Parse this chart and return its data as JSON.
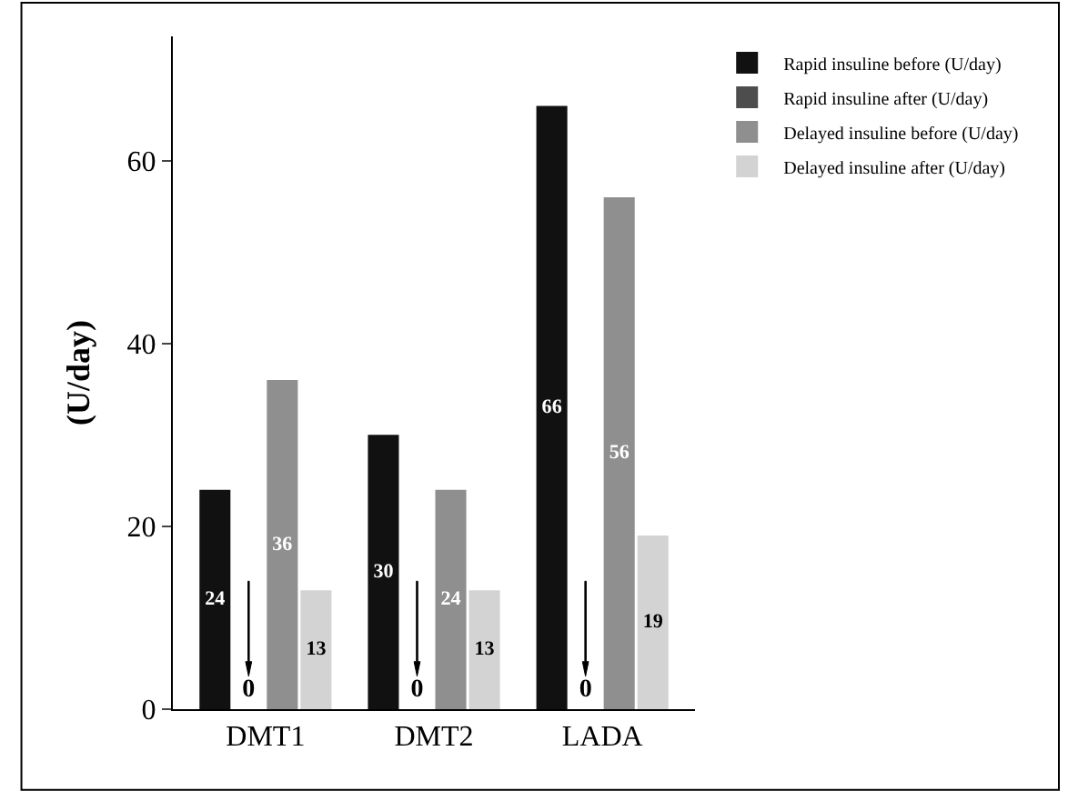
{
  "chart_data": {
    "type": "bar",
    "ylabel": "(U/day)",
    "categories": [
      "DMT1",
      "DMT2",
      "LADA"
    ],
    "series": [
      {
        "name": "Rapid insuline before (U/day)",
        "color": "#111111",
        "values": [
          24,
          30,
          66
        ]
      },
      {
        "name": "Rapid insuline after (U/day)",
        "color": "#4d4d4d",
        "values": [
          0,
          0,
          0
        ]
      },
      {
        "name": "Delayed insuline before (U/day)",
        "color": "#8f8f8f",
        "values": [
          36,
          24,
          56
        ]
      },
      {
        "name": "Delayed insuline after (U/day)",
        "color": "#d3d3d3",
        "values": [
          13,
          13,
          19
        ]
      }
    ],
    "ylim": [
      0,
      73.6
    ],
    "yticks": [
      0,
      20,
      40,
      60
    ],
    "data_labels": true,
    "legend": "top right"
  }
}
